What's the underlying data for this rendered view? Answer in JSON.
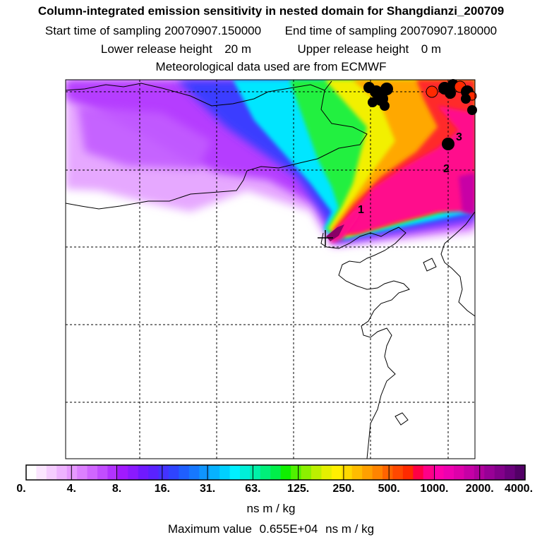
{
  "header": {
    "title": "Column-integrated emission sensitivity in nested domain for Shangdianzi_200709",
    "start_label": "Start time of sampling",
    "start_value": "20070907.150000",
    "end_label": "End time of sampling",
    "end_value": "20070907.180000",
    "lower_label": "Lower release height",
    "lower_value": "20 m",
    "upper_label": "Upper release height",
    "upper_value": "0 m",
    "met_line": "Meteorological data used are from ECMWF"
  },
  "map": {
    "trajectory_markers": [
      "1",
      "2",
      "3"
    ],
    "release_site": "Shangdianzi",
    "colors": {
      "coast": "#000000",
      "grid": "#000000",
      "fire_black": "#000000",
      "fire_red": "#ff2a00"
    }
  },
  "colorbar": {
    "labels": [
      "0.",
      "4.",
      "8.",
      "16.",
      "31.",
      "63.",
      "125.",
      "250.",
      "500.",
      "1000.",
      "2000.",
      "4000."
    ],
    "units": "ns m / kg",
    "colors": [
      "#ffffff",
      "#fbe6ff",
      "#f5cdff",
      "#eeb3ff",
      "#e699ff",
      "#dc80ff",
      "#d066ff",
      "#c24dff",
      "#b233ff",
      "#a11aff",
      "#8a1aff",
      "#6f1aff",
      "#5a22ff",
      "#4433ff",
      "#2f44ff",
      "#1f5fff",
      "#1678ff",
      "#0f95ff",
      "#07b2ff",
      "#00d0ff",
      "#00f0ff",
      "#00f0d8",
      "#00f0a8",
      "#00f07a",
      "#00f04a",
      "#10f000",
      "#50f000",
      "#8cf000",
      "#bcf000",
      "#e4f000",
      "#fff000",
      "#ffd800",
      "#ffbc00",
      "#ffa000",
      "#ff8400",
      "#ff6400",
      "#ff4800",
      "#ff2a00",
      "#ff0044",
      "#ff0088",
      "#ff00aa",
      "#ef00b0",
      "#dd00aa",
      "#c600a6",
      "#b0009c",
      "#980096",
      "#82008a",
      "#6a007c",
      "#520066"
    ]
  },
  "maximum": {
    "label": "Maximum value",
    "value": "0.655E+04",
    "units": "ns m / kg"
  }
}
